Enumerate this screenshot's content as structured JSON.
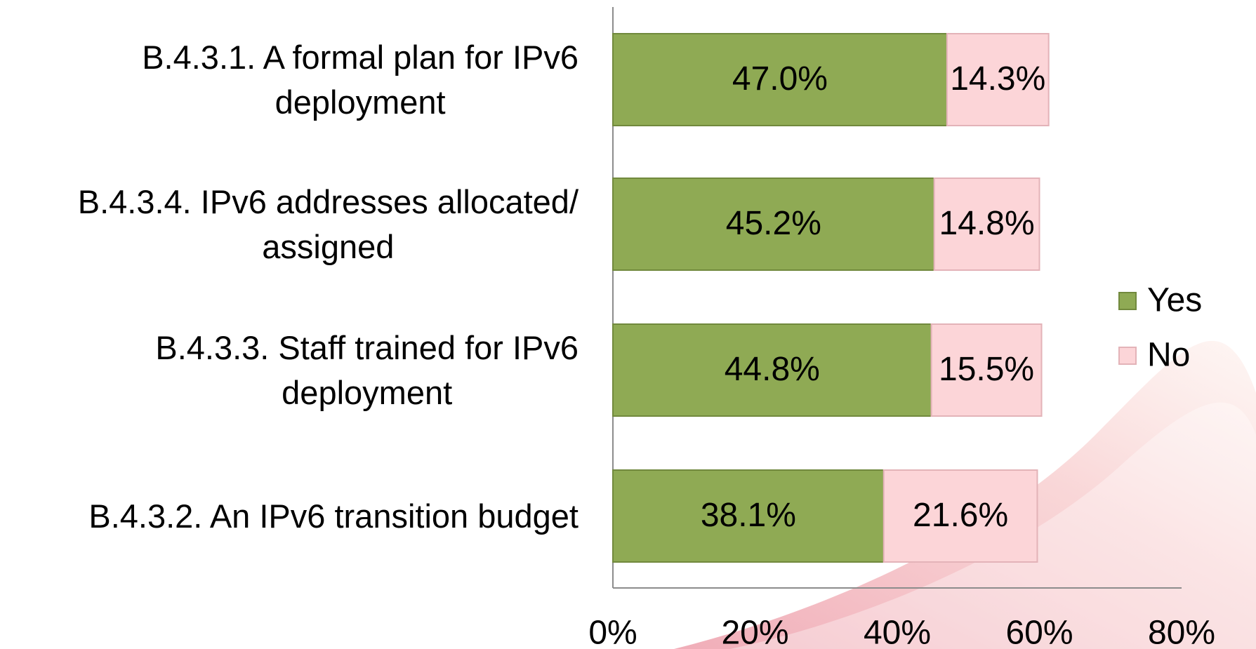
{
  "chart_data": {
    "type": "stacked_barh",
    "categories": [
      "B.4.3.1. A formal plan for IPv6\ndeployment",
      "B.4.3.4. IPv6 addresses allocated/\nassigned",
      "B.4.3.3. Staff trained for IPv6\ndeployment",
      "B.4.3.2. An IPv6 transition budget"
    ],
    "series": [
      {
        "name": "Yes",
        "color": "#8faa54",
        "values": [
          47.0,
          45.2,
          44.8,
          38.1
        ],
        "value_labels": [
          "47.0%",
          "45.2%",
          "44.8%",
          "38.1%"
        ]
      },
      {
        "name": "No",
        "color": "#fcd5d8",
        "values": [
          14.3,
          14.8,
          15.5,
          21.6
        ],
        "value_labels": [
          "14.3%",
          "14.8%",
          "15.5%",
          "21.6%"
        ]
      }
    ],
    "xlim": [
      0,
      80
    ],
    "xticks": [
      {
        "value": 0,
        "label": "0%"
      },
      {
        "value": 20,
        "label": "20%"
      },
      {
        "value": 40,
        "label": "40%"
      },
      {
        "value": 60,
        "label": "60%"
      },
      {
        "value": 80,
        "label": "80%"
      }
    ],
    "legend": "right"
  }
}
